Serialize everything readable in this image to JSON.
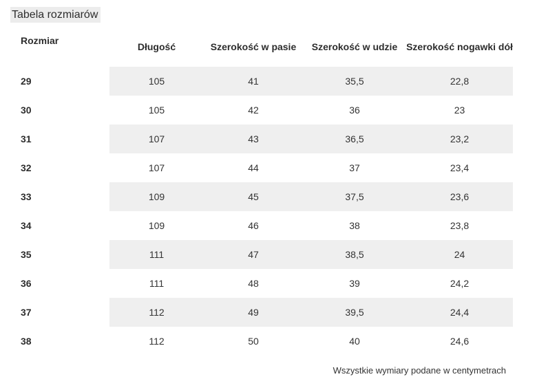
{
  "page": {
    "title": "Tabela rozmiarów",
    "footer_note": "Wszystkie wymiary podane w centymetrach"
  },
  "table": {
    "columns": [
      "Rozmiar",
      "Długość",
      "Szerokość w pasie",
      "Szerokość w udzie",
      "Szerokość nogawki dół"
    ],
    "rows": [
      {
        "size": "29",
        "values": [
          "105",
          "41",
          "35,5",
          "22,8"
        ]
      },
      {
        "size": "30",
        "values": [
          "105",
          "42",
          "36",
          "23"
        ]
      },
      {
        "size": "31",
        "values": [
          "107",
          "43",
          "36,5",
          "23,2"
        ]
      },
      {
        "size": "32",
        "values": [
          "107",
          "44",
          "37",
          "23,4"
        ]
      },
      {
        "size": "33",
        "values": [
          "109",
          "45",
          "37,5",
          "23,6"
        ]
      },
      {
        "size": "34",
        "values": [
          "109",
          "46",
          "38",
          "23,8"
        ]
      },
      {
        "size": "35",
        "values": [
          "111",
          "47",
          "38,5",
          "24"
        ]
      },
      {
        "size": "36",
        "values": [
          "111",
          "48",
          "39",
          "24,2"
        ]
      },
      {
        "size": "37",
        "values": [
          "112",
          "49",
          "39,5",
          "24,4"
        ]
      },
      {
        "size": "38",
        "values": [
          "112",
          "50",
          "40",
          "24,6"
        ]
      }
    ]
  },
  "colors": {
    "row_stripe": "#efefef",
    "title_highlight": "#ececec",
    "text": "#2d2d2d"
  }
}
